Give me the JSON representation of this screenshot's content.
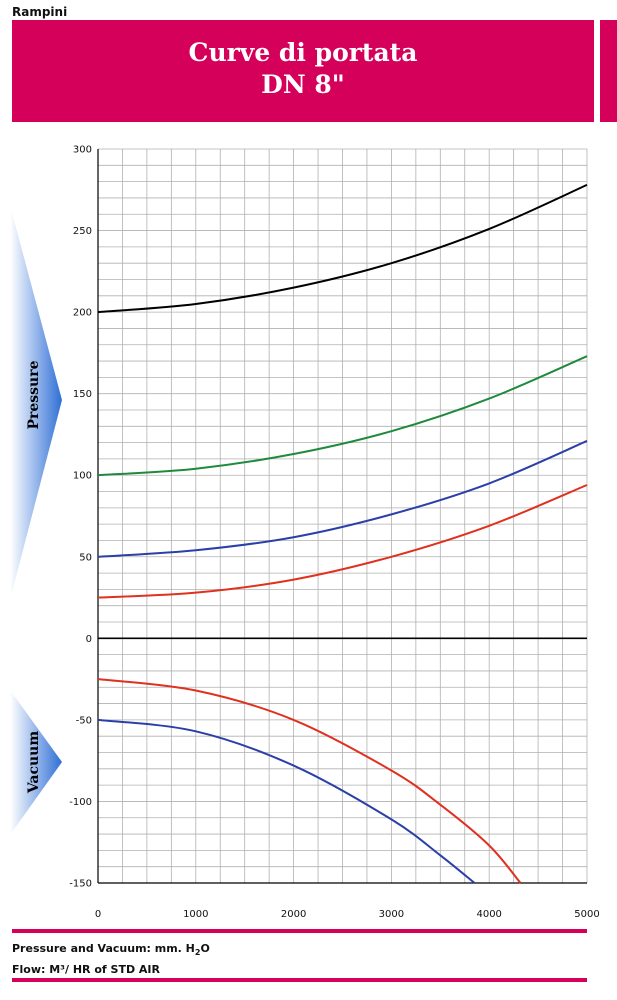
{
  "header": {
    "brand": "Rampini",
    "title_line1": "Curve di portata",
    "title_line2": "DN 8\""
  },
  "side_labels": {
    "pressure": "Pressure",
    "vacuum": "Vacuum"
  },
  "footer": {
    "pressure_vacuum_prefix": "Pressure and Vacuum: mm. H",
    "pressure_vacuum_sub": "2",
    "pressure_vacuum_suffix": "O",
    "flow": "Flow: M³/ HR of STD AIR"
  },
  "colors": {
    "brand": "#d4005a",
    "grid": "#b0b0b0",
    "arrow": "#2f6fd6"
  },
  "chart_data": {
    "type": "line",
    "title": "Curve di portata DN 8\"",
    "xlim": [
      0,
      5000
    ],
    "ylim": [
      -150,
      300
    ],
    "x_ticks": [
      0,
      1000,
      2000,
      3000,
      4000,
      5000
    ],
    "x_tick_labels": [
      "0",
      "1000",
      "2000",
      "3000",
      "4000",
      "5000"
    ],
    "y_ticks": [
      -150,
      -100,
      -50,
      0,
      50,
      100,
      150,
      200,
      250,
      300
    ],
    "y_tick_labels": [
      "-150",
      "-100",
      "-50",
      "0",
      "50",
      "100",
      "150",
      "200",
      "250",
      "300"
    ],
    "grid": true,
    "series": [
      {
        "color": "#000000",
        "x": [
          0,
          1000,
          2000,
          3000,
          4000,
          5000
        ],
        "y": [
          200,
          205,
          215,
          230,
          251,
          278
        ]
      },
      {
        "color": "#1e8a3c",
        "x": [
          0,
          1000,
          2000,
          3000,
          4000,
          5000
        ],
        "y": [
          100,
          104,
          113,
          127,
          147,
          173
        ]
      },
      {
        "color": "#2a3fa8",
        "x": [
          0,
          1000,
          2000,
          3000,
          4000,
          5000
        ],
        "y": [
          50,
          54,
          62,
          76,
          95,
          121
        ]
      },
      {
        "color": "#e0301e",
        "x": [
          0,
          1000,
          2000,
          3000,
          4000,
          5000
        ],
        "y": [
          25,
          28,
          36,
          50,
          69,
          94
        ]
      },
      {
        "color": "#e0301e",
        "x": [
          0,
          1000,
          2000,
          3000,
          3500,
          4000,
          4320
        ],
        "y": [
          -25,
          -32,
          -50,
          -81,
          -102,
          -127,
          -150
        ]
      },
      {
        "color": "#2a3fa8",
        "x": [
          0,
          1000,
          2000,
          3000,
          3500,
          3850
        ],
        "y": [
          -50,
          -57,
          -78,
          -111,
          -133,
          -150
        ]
      }
    ]
  }
}
